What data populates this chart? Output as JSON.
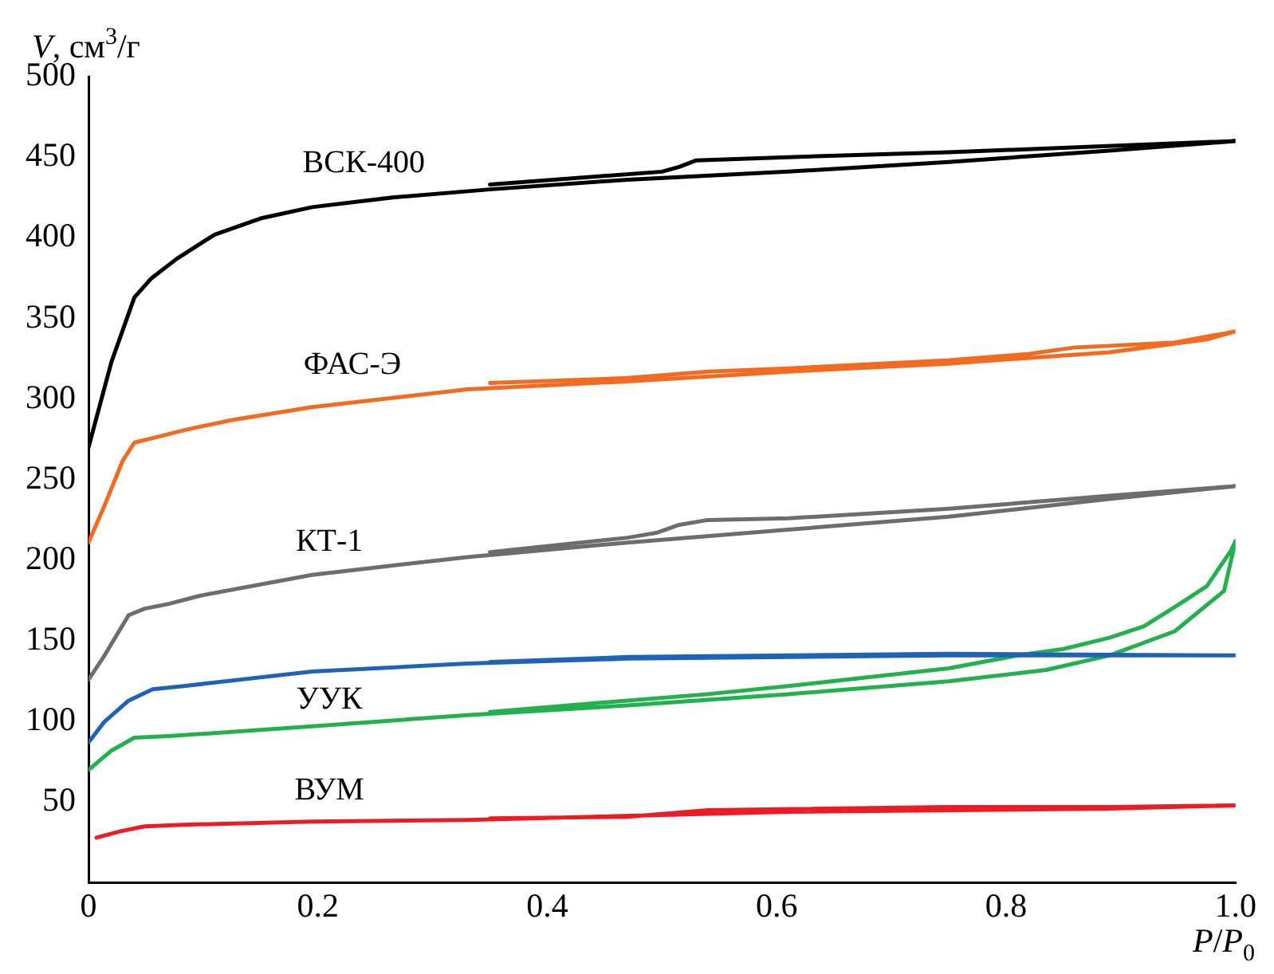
{
  "chart_data": {
    "type": "line",
    "xlabel": "P/P$_{0}$",
    "ylabel": "V, см$^{3}$/г",
    "xlim": [
      0,
      1.0
    ],
    "xticks": [
      0,
      0.2,
      0.4,
      0.6,
      0.8,
      {
        "value": 1.0,
        "label": "1.0"
      }
    ],
    "ylim": [
      0,
      500
    ],
    "yticks": [
      50,
      100,
      150,
      200,
      250,
      300,
      350,
      400,
      450,
      500
    ],
    "grid": false,
    "legend": false,
    "marker": "none",
    "line_style": "solid",
    "series": [
      {
        "name": "ВСК-400",
        "color": "#000000",
        "x": [
          0,
          0.02,
          0.04,
          0.055,
          0.077,
          0.11,
          0.15,
          0.195,
          0.265,
          0.35,
          0.47,
          0.61,
          0.75,
          0.89,
          1.0,
          0.75,
          0.61,
          0.53,
          0.515,
          0.5,
          0.35
        ],
        "values": [
          270,
          323,
          363,
          375,
          387,
          402,
          412,
          419,
          425,
          430,
          436,
          441,
          447,
          454,
          460,
          453,
          450,
          448,
          444,
          441,
          433
        ]
      },
      {
        "name": "ФАС-Э",
        "color": "#f26b21",
        "x": [
          0,
          0.014,
          0.03,
          0.04,
          0.063,
          0.085,
          0.125,
          0.195,
          0.33,
          0.47,
          0.61,
          0.75,
          0.89,
          0.975,
          1.0,
          0.947,
          0.89,
          0.86,
          0.82,
          0.75,
          0.61,
          0.54,
          0.47,
          0.35
        ],
        "values": [
          211,
          234,
          262,
          273,
          277,
          281,
          287,
          295,
          306,
          311,
          317,
          322,
          329,
          337,
          342,
          335,
          333,
          332,
          328,
          324,
          319,
          317,
          313,
          310
        ]
      },
      {
        "name": "КТ-1",
        "color": "#6d6d6d",
        "x": [
          0,
          0.014,
          0.035,
          0.049,
          0.07,
          0.097,
          0.195,
          0.33,
          0.47,
          0.61,
          0.75,
          0.89,
          1.0,
          0.89,
          0.75,
          0.61,
          0.54,
          0.515,
          0.495,
          0.47,
          0.35
        ],
        "values": [
          126,
          141,
          166,
          170,
          173,
          178,
          191,
          202,
          211,
          219,
          227,
          238,
          246,
          240,
          232,
          226,
          225,
          222,
          217,
          214,
          205
        ]
      },
      {
        "color": "#1f63b8",
        "x": [
          0,
          0.014,
          0.035,
          0.056,
          0.083,
          0.195,
          0.33,
          0.47,
          0.75,
          1.0,
          0.75,
          0.47,
          0.35
        ],
        "values": [
          87,
          100,
          113,
          120,
          122,
          131,
          136,
          139,
          141,
          141,
          142,
          140,
          137
        ]
      },
      {
        "name": "УУК",
        "color": "#22b14c",
        "x": [
          0,
          0.02,
          0.04,
          0.07,
          0.195,
          0.33,
          0.47,
          0.61,
          0.75,
          0.835,
          0.89,
          0.947,
          0.99,
          1.0,
          0.996,
          0.975,
          0.947,
          0.92,
          0.89,
          0.85,
          0.81,
          0.75,
          0.61,
          0.54,
          0.47,
          0.35
        ],
        "values": [
          70,
          82,
          90,
          91,
          97,
          104,
          110,
          117,
          125,
          132,
          141,
          156,
          181,
          212,
          206,
          184,
          171,
          159,
          152,
          145,
          141,
          133,
          122,
          117,
          113,
          106
        ]
      },
      {
        "name": "ВУМ",
        "color": "#ed1c24",
        "x": [
          0.007,
          0.028,
          0.049,
          0.083,
          0.195,
          0.33,
          0.61,
          0.89,
          1.0,
          0.89,
          0.75,
          0.54,
          0.47,
          0.35
        ],
        "values": [
          28,
          32,
          35,
          36,
          38,
          39,
          44,
          46,
          48,
          47,
          47,
          45,
          41,
          40
        ]
      }
    ]
  }
}
